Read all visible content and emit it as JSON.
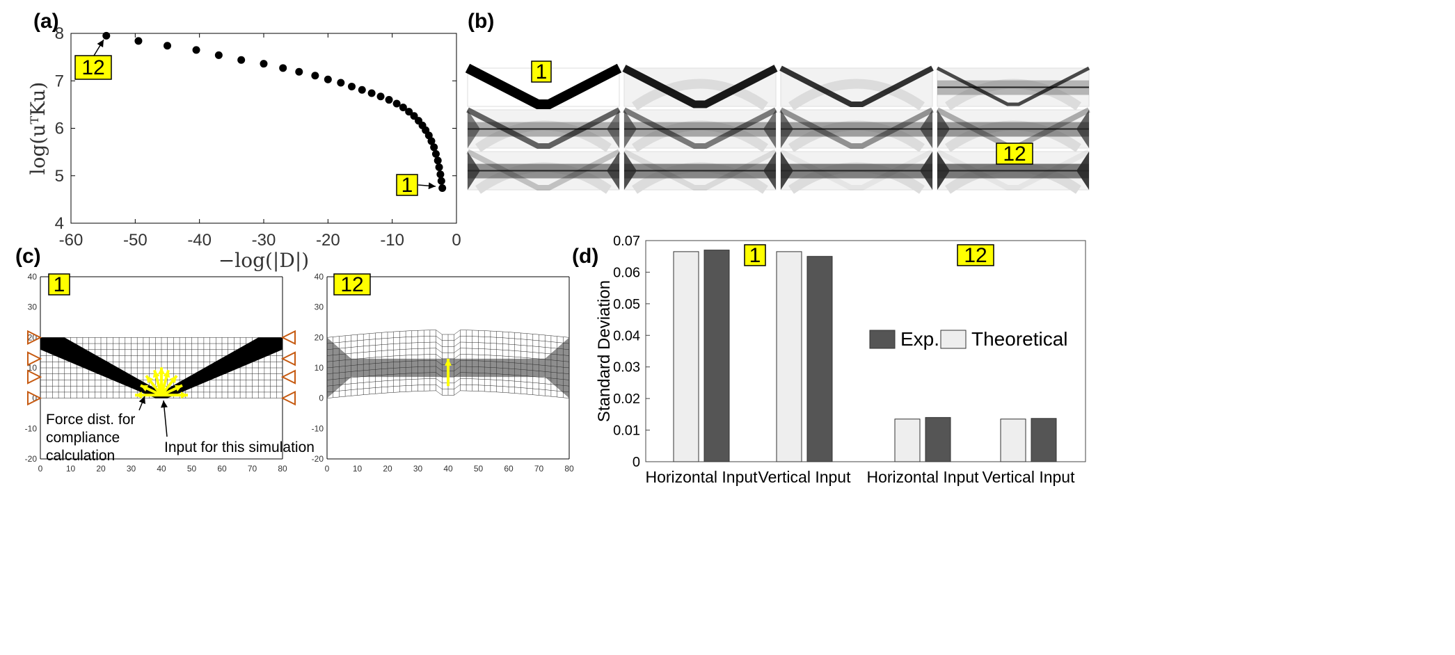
{
  "panels": {
    "a": "(a)",
    "b": "(b)",
    "c": "(c)",
    "d": "(d)"
  },
  "tags": {
    "first": "1",
    "last": "12"
  },
  "colors": {
    "tag_fill": "#ffff00",
    "exp_bar": "#555555",
    "theory_bar": "#eeeeee",
    "support": "#c65a11",
    "force_arrow": "#ffff00"
  },
  "chart_data": [
    {
      "type": "scatter",
      "xlabel": "−log(|D|)",
      "ylabel": "log(uᵀKu)",
      "xlim": [
        -60,
        0
      ],
      "ylim": [
        4,
        8
      ],
      "x_ticks": [
        "-60",
        "-50",
        "-40",
        "-30",
        "-20",
        "-10",
        "0"
      ],
      "y_ticks": [
        "4",
        "5",
        "6",
        "7",
        "8"
      ],
      "points": [
        [
          -54.5,
          7.95
        ],
        [
          -49.5,
          7.84
        ],
        [
          -45,
          7.74
        ],
        [
          -40.5,
          7.65
        ],
        [
          -37,
          7.54
        ],
        [
          -33.5,
          7.44
        ],
        [
          -30,
          7.36
        ],
        [
          -27,
          7.27
        ],
        [
          -24.5,
          7.19
        ],
        [
          -22,
          7.11
        ],
        [
          -20,
          7.03
        ],
        [
          -18,
          6.96
        ],
        [
          -16.3,
          6.88
        ],
        [
          -14.7,
          6.81
        ],
        [
          -13.2,
          6.74
        ],
        [
          -11.8,
          6.67
        ],
        [
          -10.5,
          6.6
        ],
        [
          -9.3,
          6.52
        ],
        [
          -8.3,
          6.44
        ],
        [
          -7.4,
          6.35
        ],
        [
          -6.6,
          6.26
        ],
        [
          -5.9,
          6.16
        ],
        [
          -5.3,
          6.06
        ],
        [
          -4.8,
          5.96
        ],
        [
          -4.3,
          5.85
        ],
        [
          -3.9,
          5.73
        ],
        [
          -3.5,
          5.6
        ],
        [
          -3.2,
          5.46
        ],
        [
          -2.9,
          5.32
        ],
        [
          -2.7,
          5.18
        ],
        [
          -2.5,
          5.03
        ],
        [
          -2.35,
          4.89
        ],
        [
          -2.2,
          4.74
        ]
      ]
    },
    {
      "type": "bar",
      "ylabel": "Standard Deviation",
      "ylim": [
        0,
        0.07
      ],
      "y_ticks": [
        "0",
        "0.01",
        "0.02",
        "0.03",
        "0.04",
        "0.05",
        "0.06",
        "0.07"
      ],
      "categories": [
        "Horizontal Input",
        "Vertical Input",
        "Horizontal Input",
        "Vertical Input"
      ],
      "series": [
        {
          "name": "Theoretical",
          "values": [
            0.0665,
            0.0665,
            0.0135,
            0.0135
          ]
        },
        {
          "name": "Exp.",
          "values": [
            0.067,
            0.065,
            0.014,
            0.0137
          ]
        }
      ],
      "legend": "center-right"
    }
  ],
  "mesh_plots": {
    "left": {
      "x_ticks": [
        "0",
        "10",
        "20",
        "30",
        "40",
        "50",
        "60",
        "70",
        "80"
      ],
      "y_ticks": [
        "-20",
        "-10",
        "0",
        "10",
        "20",
        "30",
        "40"
      ],
      "annotation_force": "Force dist. for\ncompliance\ncalculation",
      "annotation_input": "Input for this simulation"
    },
    "right": {
      "x_ticks": [
        "0",
        "10",
        "20",
        "30",
        "40",
        "50",
        "60",
        "70",
        "80"
      ],
      "y_ticks": [
        "-20",
        "-10",
        "0",
        "10",
        "20",
        "30",
        "40"
      ]
    }
  }
}
